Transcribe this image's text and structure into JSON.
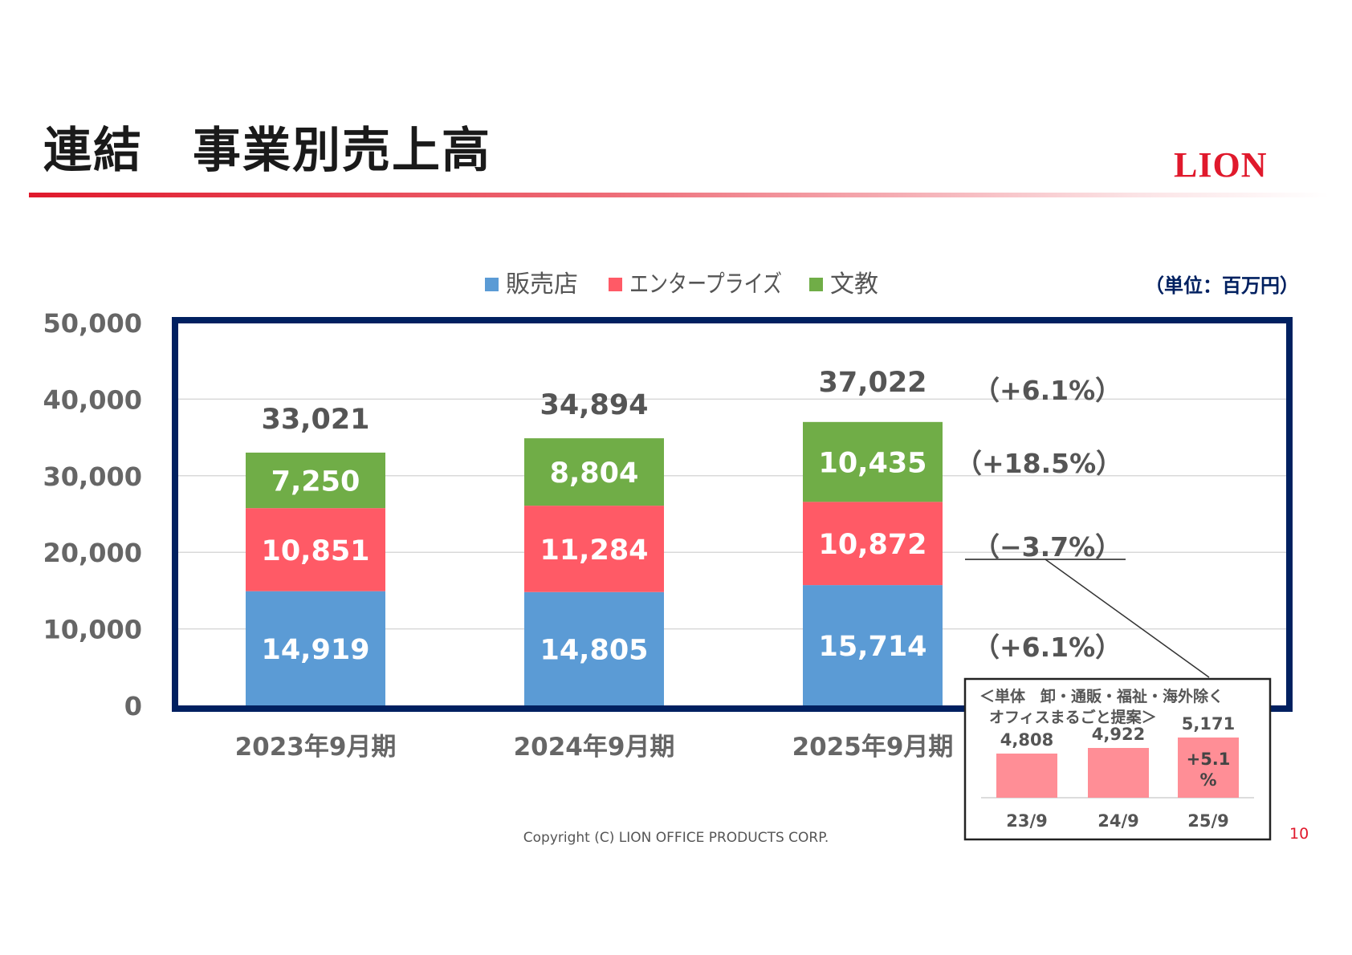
{
  "header": {
    "title": "連結　事業別売上高",
    "logo": "LION"
  },
  "unit_label": "（単位：百万円）",
  "footer": {
    "copyright": "Copyright (C) LION OFFICE PRODUCTS CORP.",
    "page_number": "10"
  },
  "colors": {
    "hanbaiten": "#5b9bd5",
    "enterprise": "#ff5a66",
    "bunkyo": "#70ad47",
    "frame": "#002060",
    "inset_bar": "#ff8e96",
    "accent": "#e0192c"
  },
  "chart_data": [
    {
      "type": "bar",
      "stacked": true,
      "categories": [
        "2023年9月期",
        "2024年9月期",
        "2025年9月期"
      ],
      "series": [
        {
          "name": "販売店",
          "values": [
            14919,
            14805,
            15714
          ],
          "labels": [
            "14,919",
            "14,805",
            "15,714"
          ]
        },
        {
          "name": "エンタープライズ",
          "values": [
            10851,
            11284,
            10872
          ],
          "labels": [
            "10,851",
            "11,284",
            "10,872"
          ]
        },
        {
          "name": "文教",
          "values": [
            7250,
            8804,
            10435
          ],
          "labels": [
            "7,250",
            "8,804",
            "10,435"
          ]
        }
      ],
      "totals": [
        "33,021",
        "34,894",
        "37,022"
      ],
      "yoy_labels": {
        "total": "（+6.1%）",
        "bunkyo": "（+18.5%）",
        "enterprise": "（−3.7%）",
        "hanbaiten": "（+6.1%）"
      },
      "ylim": [
        0,
        50000
      ],
      "yticks": [
        "0",
        "10,000",
        "20,000",
        "30,000",
        "40,000",
        "50,000"
      ],
      "grid": true,
      "legend_position": "top"
    },
    {
      "type": "bar",
      "title_line1": "＜単体　卸・通販・福祉・海外除く",
      "title_line2": "オフィスまるごと提案＞",
      "categories": [
        "23/9",
        "24/9",
        "25/9"
      ],
      "values": [
        4808,
        4922,
        5171
      ],
      "labels": [
        "4,808",
        "4,922",
        "5,171"
      ],
      "annotation_line1": "+5.1",
      "annotation_line2": "%"
    }
  ]
}
